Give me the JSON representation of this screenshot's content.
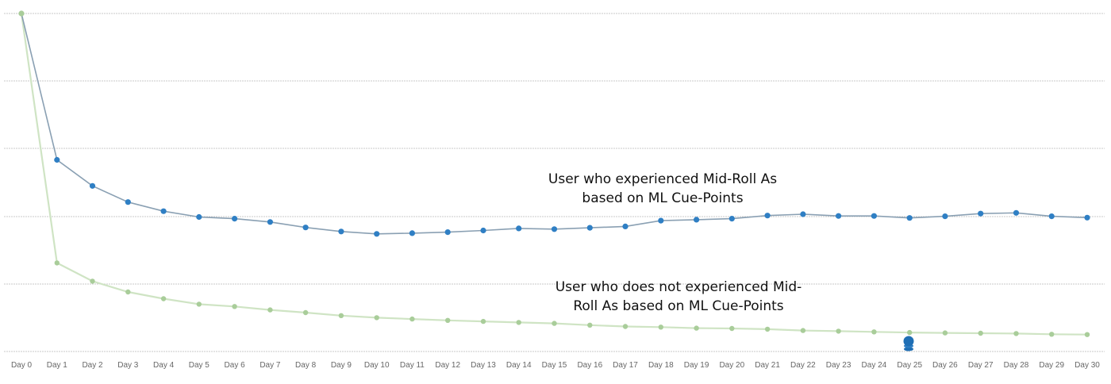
{
  "chart_data": {
    "type": "line",
    "title": "",
    "xlabel": "",
    "ylabel": "",
    "ylim": [
      0,
      100
    ],
    "grid": true,
    "categories": [
      "Day 0",
      "Day 1",
      "Day 2",
      "Day 3",
      "Day 4",
      "Day 5",
      "Day 6",
      "Day 7",
      "Day 8",
      "Day 9",
      "Day 10",
      "Day 11",
      "Day 12",
      "Day 13",
      "Day 14",
      "Day 15",
      "Day 16",
      "Day 17",
      "Day 18",
      "Day 19",
      "Day 20",
      "Day 21",
      "Day 22",
      "Day 23",
      "Day 24",
      "Day 25",
      "Day 26",
      "Day 27",
      "Day 28",
      "Day 29",
      "Day 30"
    ],
    "series": [
      {
        "color": "#2f7fc4",
        "line_color": "#8aa0b3",
        "values": [
          100,
          56.7,
          49,
          44.2,
          41.5,
          39.8,
          39.3,
          38.3,
          36.7,
          35.5,
          34.8,
          35.0,
          35.3,
          35.8,
          36.4,
          36.2,
          36.6,
          37.0,
          38.7,
          39.0,
          39.3,
          40.2,
          40.6,
          40.1,
          40.1,
          39.5,
          40.0,
          40.8,
          41.0,
          40.0,
          39.6
        ]
      },
      {
        "color": "#a9cd9a",
        "line_color": "#cfe4c4",
        "values": [
          100,
          26.2,
          20.8,
          17.6,
          15.6,
          14.0,
          13.3,
          12.3,
          11.5,
          10.6,
          10.0,
          9.6,
          9.2,
          8.9,
          8.6,
          8.3,
          7.8,
          7.4,
          7.2,
          6.9,
          6.8,
          6.6,
          6.2,
          6.0,
          5.8,
          5.6,
          5.5,
          5.4,
          5.3,
          5.1,
          5.0
        ]
      }
    ],
    "annotations": [
      {
        "lines": [
          "User who experienced Mid-Roll As",
          "based on ML Cue-Points"
        ],
        "series_index": 0
      },
      {
        "lines": [
          "User who does not experienced Mid-",
          "Roll As based on ML Cue-Points"
        ],
        "series_index": 1
      }
    ]
  }
}
